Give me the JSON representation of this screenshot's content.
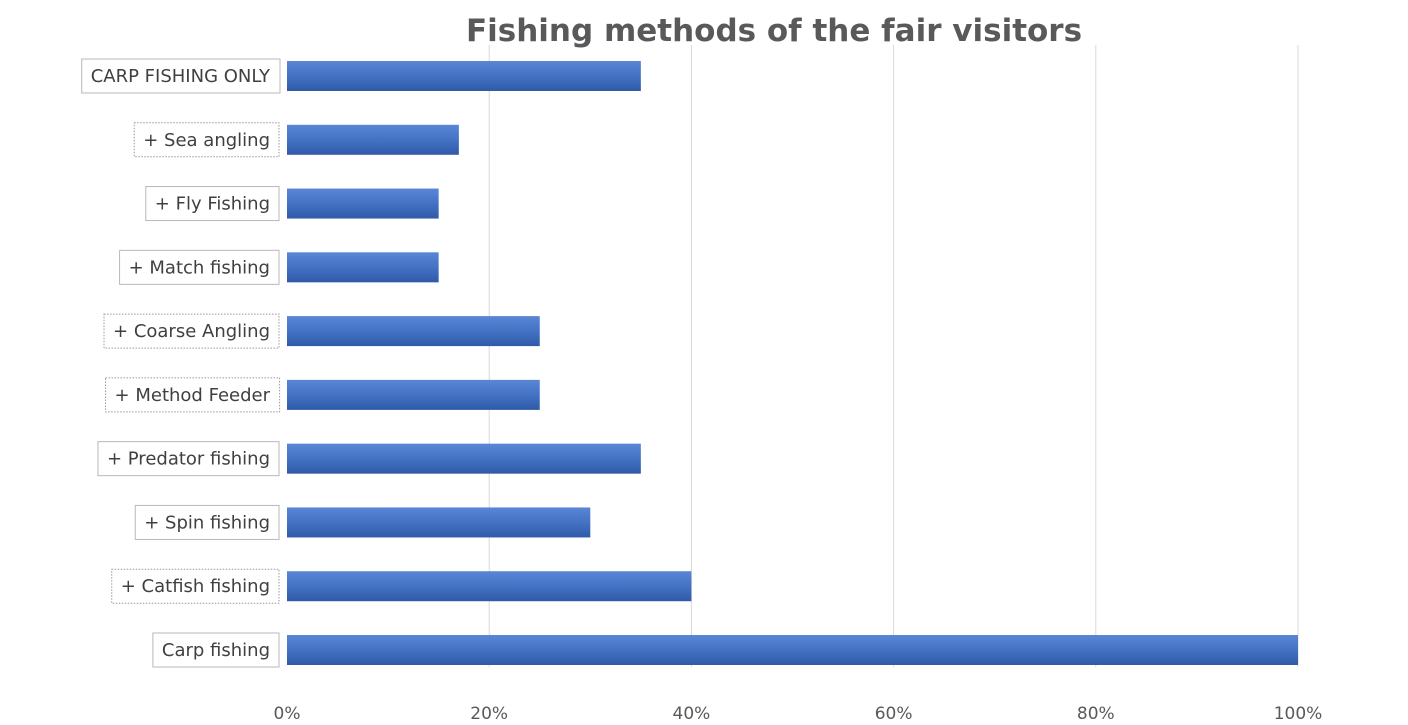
{
  "chart_data": {
    "type": "bar",
    "orientation": "horizontal",
    "title": "Fishing methods of the fair visitors",
    "xlabel": "",
    "ylabel": "",
    "categories": [
      "CARP FISHING ONLY",
      "+ Sea angling",
      "+ Fly Fishing",
      "+ Match fishing",
      "+ Coarse Angling",
      "+ Method Feeder",
      "+ Predator fishing",
      "+ Spin fishing",
      "+ Catfish fishing",
      "Carp fishing"
    ],
    "values": [
      0.35,
      0.17,
      0.15,
      0.15,
      0.25,
      0.25,
      0.35,
      0.3,
      0.4,
      1.0
    ],
    "xlim": [
      0,
      1
    ],
    "xticks": [
      0,
      0.2,
      0.4,
      0.6,
      0.8,
      1.0
    ],
    "xtick_labels": [
      "0%",
      "20%",
      "40%",
      "60%",
      "80%",
      "100%"
    ],
    "grid": true,
    "legend": "none",
    "bar_color": "#4472C4"
  }
}
